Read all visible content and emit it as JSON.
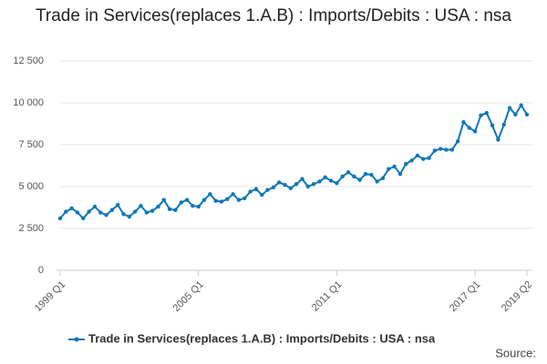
{
  "chart_data": {
    "type": "line",
    "title": "Trade in Services(replaces 1.A.B) : Imports/Debits : USA : nsa",
    "source": "Source:",
    "categories": [
      "1999 Q1",
      null,
      null,
      null,
      null,
      null,
      null,
      null,
      null,
      null,
      null,
      null,
      null,
      null,
      null,
      null,
      null,
      null,
      null,
      null,
      null,
      null,
      null,
      null,
      "2005 Q1",
      null,
      null,
      null,
      null,
      null,
      null,
      null,
      null,
      null,
      null,
      null,
      null,
      null,
      null,
      null,
      null,
      null,
      null,
      null,
      null,
      null,
      null,
      null,
      "2011 Q1",
      null,
      null,
      null,
      null,
      null,
      null,
      null,
      null,
      null,
      null,
      null,
      null,
      null,
      null,
      null,
      null,
      null,
      null,
      null,
      null,
      null,
      null,
      null,
      "2017 Q1",
      null,
      null,
      null,
      null,
      null,
      null,
      null,
      null,
      "2019 Q2"
    ],
    "series": [
      {
        "name": "Trade in Services(replaces 1.A.B) : Imports/Debits : USA : nsa",
        "color": "#0f77b6",
        "values": [
          3100,
          3500,
          3700,
          3450,
          3100,
          3500,
          3800,
          3450,
          3300,
          3600,
          3900,
          3350,
          3200,
          3500,
          3850,
          3450,
          3550,
          3800,
          4200,
          3650,
          3600,
          4050,
          4200,
          3850,
          3800,
          4200,
          4550,
          4150,
          4100,
          4250,
          4550,
          4200,
          4300,
          4700,
          4850,
          4500,
          4800,
          4950,
          5250,
          5100,
          4900,
          5150,
          5450,
          5000,
          5150,
          5300,
          5550,
          5350,
          5200,
          5600,
          5850,
          5600,
          5400,
          5750,
          5700,
          5300,
          5500,
          6050,
          6200,
          5750,
          6350,
          6550,
          6850,
          6650,
          6700,
          7150,
          7250,
          7200,
          7200,
          7700,
          8850,
          8500,
          8300,
          9250,
          9400,
          8650,
          7800,
          8700,
          9700,
          9300,
          9850,
          9300
        ]
      }
    ],
    "ylim": [
      0,
      12500
    ],
    "yticks": [
      0,
      {
        "value": 2500,
        "label": "2 500"
      },
      {
        "value": 5000,
        "label": "5 000"
      },
      {
        "value": 7500,
        "label": "7 500"
      },
      {
        "value": 10000,
        "label": "10 000"
      },
      {
        "value": 12500,
        "label": "12 500"
      }
    ],
    "grid": true
  }
}
